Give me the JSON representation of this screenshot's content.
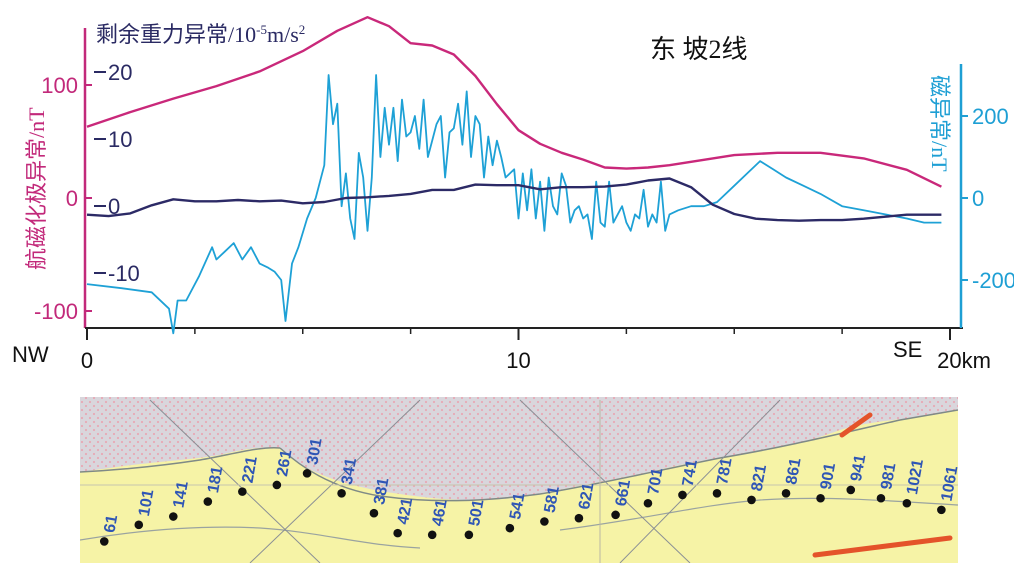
{
  "chart_data": {
    "type": "line",
    "title": "东 坡2线",
    "x": {
      "ticks": [
        0,
        10,
        20
      ],
      "tick_labels": [
        "0",
        "10",
        "20km"
      ],
      "range": [
        0,
        20
      ],
      "left_label": "NW",
      "right_label": "SE"
    },
    "axes": {
      "left": {
        "label": "航磁化极异常/nT",
        "ticks": [
          100,
          0,
          -100
        ],
        "range": [
          -115,
          150
        ],
        "color": "#c2297a"
      },
      "gravity": {
        "label_main": "剩余重力异常/10",
        "label_exp": "-5",
        "label_unit": "m/s",
        "label_unit_exp": "2",
        "ticks": [
          20,
          10,
          0,
          -10
        ],
        "tick_labels": [
          "20",
          "10",
          "0",
          "-10"
        ],
        "color": "#2a2a63"
      },
      "right": {
        "label": "磁异常/nT",
        "ticks": [
          200,
          0,
          -200
        ],
        "range": [
          -330,
          310
        ],
        "color": "#1e9fd4"
      }
    },
    "series": [
      {
        "axis": "left",
        "color": "#c9287a",
        "x": [
          0,
          1,
          2,
          3,
          4,
          5,
          5.8,
          6.5,
          7.0,
          7.5,
          8.0,
          8.5,
          9.0,
          9.5,
          10.0,
          10.5,
          11.0,
          11.5,
          12.0,
          12.5,
          13.0,
          13.5,
          14.0,
          15.0,
          16.0,
          17.0,
          18.0,
          19.0,
          19.8
        ],
        "values": [
          63,
          76,
          88,
          99,
          112,
          130,
          148,
          160,
          152,
          137,
          135,
          127,
          108,
          83,
          60,
          48,
          40,
          34,
          27,
          26,
          27,
          29,
          32,
          38,
          40,
          40,
          35,
          25,
          10
        ]
      },
      {
        "axis": "gravity",
        "color": "#2c2a66",
        "x": [
          0,
          0.5,
          1.0,
          1.5,
          2.0,
          2.5,
          3.0,
          3.5,
          4.0,
          4.5,
          5.0,
          5.5,
          6.0,
          6.5,
          7.0,
          7.5,
          8.0,
          8.5,
          9.0,
          9.5,
          10.0,
          10.5,
          11.0,
          11.5,
          12.0,
          12.5,
          13.0,
          13.5,
          14.0,
          14.5,
          15.0,
          15.5,
          16.0,
          16.5,
          17.0,
          17.5,
          18.0,
          18.5,
          19.0,
          19.5,
          19.8
        ],
        "values": [
          -1.3,
          -1.5,
          -1.1,
          0.1,
          1.0,
          0.7,
          0.7,
          0.9,
          0.7,
          0.8,
          0.4,
          0.6,
          1.2,
          1.3,
          1.5,
          1.8,
          2.4,
          2.4,
          3.2,
          3.1,
          3.1,
          2.5,
          2.8,
          2.8,
          2.9,
          3.2,
          3.8,
          4.1,
          2.8,
          0.2,
          -1.2,
          -1.9,
          -2.1,
          -2.2,
          -2.1,
          -2.1,
          -1.9,
          -1.6,
          -1.3,
          -1.3,
          -1.3
        ]
      },
      {
        "axis": "right",
        "color": "#1ea1d6",
        "x": [
          0,
          0.8,
          1.5,
          1.9,
          2.0,
          2.1,
          2.3,
          2.6,
          2.9,
          3.0,
          3.2,
          3.4,
          3.6,
          3.8,
          4.0,
          4.2,
          4.35,
          4.5,
          4.6,
          4.75,
          4.9,
          5.1,
          5.3,
          5.5,
          5.6,
          5.7,
          5.8,
          5.9,
          6.0,
          6.1,
          6.2,
          6.3,
          6.4,
          6.5,
          6.6,
          6.7,
          6.8,
          6.9,
          7.0,
          7.1,
          7.2,
          7.3,
          7.4,
          7.5,
          7.6,
          7.7,
          7.8,
          7.9,
          8.0,
          8.1,
          8.2,
          8.3,
          8.4,
          8.5,
          8.6,
          8.7,
          8.8,
          8.9,
          9.0,
          9.1,
          9.2,
          9.3,
          9.4,
          9.5,
          9.6,
          9.7,
          9.8,
          9.9,
          10.0,
          10.1,
          10.2,
          10.3,
          10.4,
          10.5,
          10.6,
          10.7,
          10.8,
          10.9,
          11.0,
          11.1,
          11.2,
          11.3,
          11.4,
          11.5,
          11.6,
          11.7,
          11.8,
          11.9,
          12.0,
          12.1,
          12.2,
          12.3,
          12.4,
          12.5,
          12.6,
          12.7,
          12.8,
          12.9,
          13.0,
          13.1,
          13.2,
          13.3,
          13.4,
          13.5,
          13.7,
          14.0,
          14.3,
          14.6,
          15.0,
          15.3,
          15.6,
          15.9,
          16.2,
          16.6,
          17.0,
          17.5,
          18.0,
          18.5,
          19.0,
          19.4,
          19.8
        ],
        "values": [
          -210,
          -220,
          -230,
          -270,
          -330,
          -250,
          -250,
          -190,
          -120,
          -150,
          -130,
          -110,
          -150,
          -120,
          -160,
          -170,
          -180,
          -200,
          -300,
          -160,
          -120,
          -50,
          0,
          80,
          300,
          180,
          230,
          -20,
          60,
          -50,
          -100,
          110,
          50,
          -80,
          50,
          300,
          100,
          220,
          130,
          220,
          90,
          240,
          150,
          160,
          200,
          120,
          240,
          100,
          140,
          180,
          200,
          50,
          160,
          170,
          230,
          130,
          260,
          100,
          200,
          180,
          50,
          150,
          80,
          140,
          100,
          50,
          60,
          70,
          -50,
          60,
          -30,
          70,
          -50,
          40,
          -80,
          50,
          -20,
          -40,
          60,
          30,
          -60,
          -30,
          -20,
          -50,
          -40,
          -100,
          40,
          -60,
          -70,
          40,
          -60,
          -40,
          -20,
          -60,
          -80,
          -40,
          -50,
          20,
          -70,
          -40,
          -60,
          40,
          -80,
          -40,
          -30,
          -20,
          -20,
          -10,
          30,
          60,
          90,
          70,
          50,
          30,
          10,
          -20,
          -30,
          -40,
          -50,
          -60,
          -60
        ]
      }
    ],
    "stations": [
      {
        "label": "61",
        "x": 0.4,
        "y": 0.87
      },
      {
        "label": "101",
        "x": 1.2,
        "y": 0.77
      },
      {
        "label": "141",
        "x": 2.0,
        "y": 0.72
      },
      {
        "label": "181",
        "x": 2.8,
        "y": 0.63
      },
      {
        "label": "221",
        "x": 3.6,
        "y": 0.57
      },
      {
        "label": "261",
        "x": 4.4,
        "y": 0.53
      },
      {
        "label": "301",
        "x": 5.1,
        "y": 0.46
      },
      {
        "label": "341",
        "x": 5.9,
        "y": 0.58
      },
      {
        "label": "381",
        "x": 6.65,
        "y": 0.7
      },
      {
        "label": "421",
        "x": 7.2,
        "y": 0.82
      },
      {
        "label": "461",
        "x": 8.0,
        "y": 0.83
      },
      {
        "label": "501",
        "x": 8.85,
        "y": 0.83
      },
      {
        "label": "541",
        "x": 9.8,
        "y": 0.79
      },
      {
        "label": "581",
        "x": 10.6,
        "y": 0.75
      },
      {
        "label": "621",
        "x": 11.4,
        "y": 0.73
      },
      {
        "label": "661",
        "x": 12.25,
        "y": 0.71
      },
      {
        "label": "701",
        "x": 13.0,
        "y": 0.64
      },
      {
        "label": "741",
        "x": 13.8,
        "y": 0.59
      },
      {
        "label": "781",
        "x": 14.6,
        "y": 0.58
      },
      {
        "label": "821",
        "x": 15.4,
        "y": 0.62
      },
      {
        "label": "861",
        "x": 16.2,
        "y": 0.58
      },
      {
        "label": "901",
        "x": 17.0,
        "y": 0.61
      },
      {
        "label": "941",
        "x": 17.7,
        "y": 0.56
      },
      {
        "label": "981",
        "x": 18.4,
        "y": 0.61
      },
      {
        "label": "1021",
        "x": 19.0,
        "y": 0.64
      },
      {
        "label": "1061",
        "x": 19.8,
        "y": 0.68
      }
    ],
    "grid": false
  }
}
